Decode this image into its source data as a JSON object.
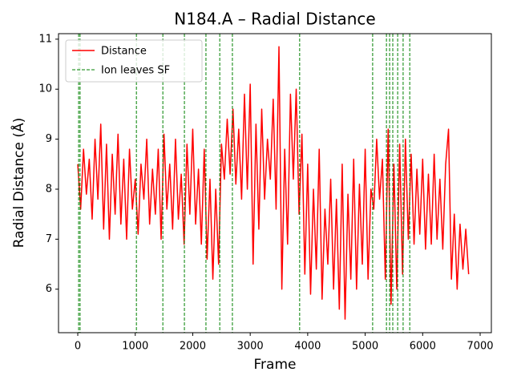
{
  "chart_data": {
    "type": "line",
    "title": "N184.A – Radial Distance",
    "xlabel": "Frame",
    "ylabel": "Radial Distance (Å)",
    "x": [
      0,
      50,
      100,
      150,
      200,
      250,
      300,
      350,
      400,
      450,
      500,
      550,
      600,
      650,
      700,
      750,
      800,
      850,
      900,
      950,
      1000,
      1050,
      1100,
      1150,
      1200,
      1250,
      1300,
      1350,
      1400,
      1450,
      1500,
      1550,
      1600,
      1650,
      1700,
      1750,
      1800,
      1850,
      1900,
      1950,
      2000,
      2050,
      2100,
      2150,
      2200,
      2250,
      2300,
      2350,
      2400,
      2450,
      2500,
      2550,
      2600,
      2650,
      2700,
      2750,
      2800,
      2850,
      2900,
      2950,
      3000,
      3050,
      3100,
      3150,
      3200,
      3250,
      3300,
      3350,
      3400,
      3450,
      3500,
      3550,
      3600,
      3650,
      3700,
      3750,
      3800,
      3850,
      3900,
      3950,
      4000,
      4050,
      4100,
      4150,
      4200,
      4250,
      4300,
      4350,
      4400,
      4450,
      4500,
      4550,
      4600,
      4650,
      4700,
      4750,
      4800,
      4850,
      4900,
      4950,
      5000,
      5050,
      5100,
      5150,
      5200,
      5250,
      5300,
      5350,
      5400,
      5450,
      5500,
      5550,
      5600,
      5650,
      5700,
      5750,
      5800,
      5850,
      5900,
      5950,
      6000,
      6050,
      6100,
      6150,
      6200,
      6250,
      6300,
      6350,
      6400,
      6450,
      6500,
      6550,
      6600,
      6650,
      6700,
      6750,
      6800
    ],
    "series": [
      {
        "name": "Distance",
        "color": "#ff0000",
        "values": [
          8.5,
          7.6,
          8.8,
          7.9,
          8.6,
          7.4,
          9.0,
          7.8,
          9.3,
          7.2,
          8.9,
          7.0,
          8.7,
          7.5,
          9.1,
          7.3,
          8.6,
          7.0,
          8.8,
          7.6,
          8.2,
          7.1,
          8.5,
          7.8,
          9.0,
          7.3,
          8.4,
          7.5,
          8.8,
          7.0,
          9.1,
          7.6,
          8.5,
          7.2,
          9.0,
          7.4,
          8.3,
          6.9,
          8.9,
          7.5,
          9.2,
          7.3,
          8.4,
          6.9,
          8.8,
          6.6,
          8.2,
          6.2,
          8.0,
          6.5,
          8.9,
          8.2,
          9.4,
          8.3,
          9.6,
          8.1,
          9.2,
          7.8,
          9.9,
          8.0,
          10.1,
          6.5,
          9.3,
          7.2,
          9.6,
          7.8,
          9.0,
          8.2,
          9.8,
          7.6,
          10.85,
          6.0,
          8.8,
          6.9,
          9.9,
          8.2,
          10.0,
          7.5,
          9.1,
          6.3,
          8.5,
          5.9,
          8.0,
          6.4,
          8.8,
          5.8,
          7.6,
          6.5,
          8.2,
          6.0,
          7.8,
          5.6,
          8.5,
          5.4,
          7.9,
          6.2,
          8.6,
          6.0,
          8.1,
          6.5,
          8.8,
          6.2,
          8.0,
          7.6,
          9.0,
          7.8,
          8.6,
          6.2,
          9.2,
          5.7,
          8.5,
          6.0,
          8.9,
          6.3,
          9.0,
          7.0,
          8.7,
          6.9,
          8.4,
          7.1,
          8.6,
          6.8,
          8.3,
          6.9,
          8.7,
          7.0,
          8.2,
          6.8,
          8.5,
          9.2,
          6.2,
          7.5,
          6.0,
          7.3,
          6.4,
          7.2,
          6.3
        ]
      }
    ],
    "vlines": {
      "name": "Ion leaves SF",
      "color": "#008000",
      "x": [
        15,
        40,
        1020,
        1480,
        1855,
        2230,
        2470,
        2690,
        3860,
        5130,
        5370,
        5425,
        5480,
        5565,
        5660,
        5775
      ]
    },
    "xlim": [
      -335,
      7195
    ],
    "ylim": [
      5.13,
      11.11
    ],
    "xticks": [
      0,
      1000,
      2000,
      3000,
      4000,
      5000,
      6000,
      7000
    ],
    "yticks": [
      6,
      7,
      8,
      9,
      10,
      11
    ],
    "legend": "upper left"
  }
}
